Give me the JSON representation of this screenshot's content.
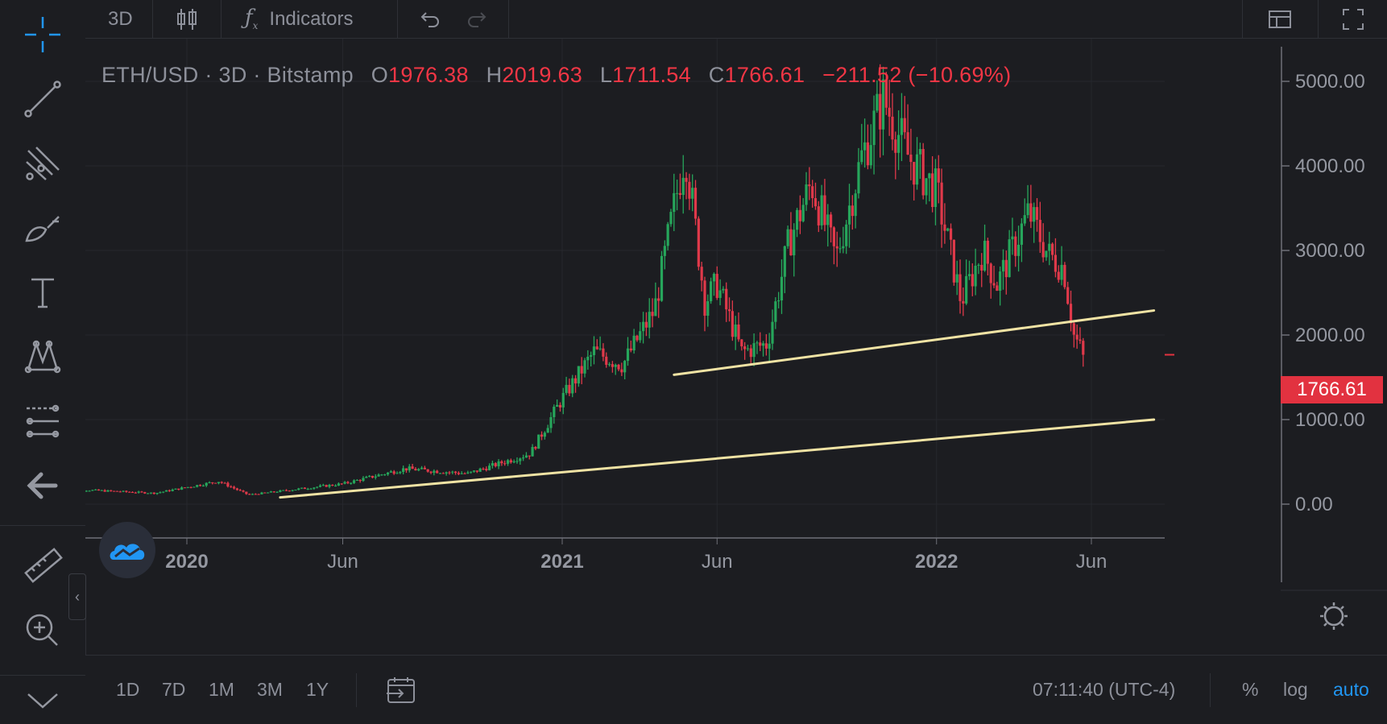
{
  "toolbar": {
    "interval": "3D",
    "indicators_label": "Indicators"
  },
  "legend": {
    "symbol": "ETH/USD · 3D · Bitstamp",
    "open_key": "O",
    "open": "1976.38",
    "high_key": "H",
    "high": "2019.63",
    "low_key": "L",
    "low": "1711.54",
    "close_key": "C",
    "close": "1766.61",
    "change": "−211.52 (−10.69%)"
  },
  "price_axis": {
    "labels": [
      "5000.00",
      "4000.00",
      "3000.00",
      "2000.00",
      "1000.00",
      "0.00"
    ],
    "last_price": "1766.61"
  },
  "time_axis": {
    "labels": [
      "2020",
      "Jun",
      "2021",
      "Jun",
      "2022",
      "Jun"
    ]
  },
  "bottom": {
    "ranges": [
      "1D",
      "7D",
      "1M",
      "3M",
      "1Y"
    ],
    "clock": "07:11:40 (UTC-4)",
    "percent": "%",
    "log": "log",
    "auto": "auto"
  },
  "colors": {
    "up": "#26a65b",
    "down": "#e0394a",
    "trendline": "#f0e3a4",
    "accent": "#2196f3",
    "background": "#1c1d21"
  },
  "sidebar_icons": [
    "crosshair-icon",
    "trend-line-icon",
    "pitchfork-icon",
    "brush-icon",
    "text-icon",
    "pattern-icon",
    "forecast-icon",
    "back-arrow-icon",
    "ruler-icon",
    "zoom-in-icon",
    "chevron-down-icon"
  ],
  "chart_data": {
    "type": "candlestick",
    "symbol": "ETH/USD",
    "interval": "3D",
    "exchange": "Bitstamp",
    "ylim": [
      -400,
      5400
    ],
    "y_ticks": [
      0,
      1000,
      2000,
      3000,
      4000,
      5000
    ],
    "price_path": [
      [
        "2019-09",
        180
      ],
      [
        "2019-12",
        130
      ],
      [
        "2020-02",
        270
      ],
      [
        "2020-03",
        110
      ],
      [
        "2020-06",
        240
      ],
      [
        "2020-08",
        420
      ],
      [
        "2020-10",
        360
      ],
      [
        "2020-12",
        600
      ],
      [
        "2021-01",
        1250
      ],
      [
        "2021-02",
        1800
      ],
      [
        "2021-03",
        1650
      ],
      [
        "2021-04",
        2300
      ],
      [
        "2021-05",
        4200
      ],
      [
        "2021-05-20",
        2400
      ],
      [
        "2021-06",
        2600
      ],
      [
        "2021-06-25",
        1800
      ],
      [
        "2021-07-20",
        1900
      ],
      [
        "2021-08-10",
        3100
      ],
      [
        "2021-09",
        3800
      ],
      [
        "2021-09-25",
        2900
      ],
      [
        "2021-10-20",
        4100
      ],
      [
        "2021-11-10",
        4800
      ],
      [
        "2021-12-05",
        4100
      ],
      [
        "2022-01-01",
        3700
      ],
      [
        "2022-01-25",
        2400
      ],
      [
        "2022-02-15",
        3000
      ],
      [
        "2022-03-01",
        2600
      ],
      [
        "2022-04-01",
        3450
      ],
      [
        "2022-04-20",
        2950
      ],
      [
        "2022-05-05",
        2800
      ],
      [
        "2022-05-15",
        2000
      ],
      [
        "2022-05-24",
        1766.61
      ]
    ],
    "trendlines": [
      {
        "from": [
          "2020-04-01",
          80
        ],
        "to": [
          "2022-08-01",
          1000
        ]
      },
      {
        "from": [
          "2021-04-20",
          1530
        ],
        "to": [
          "2022-08-01",
          2290
        ]
      }
    ]
  }
}
